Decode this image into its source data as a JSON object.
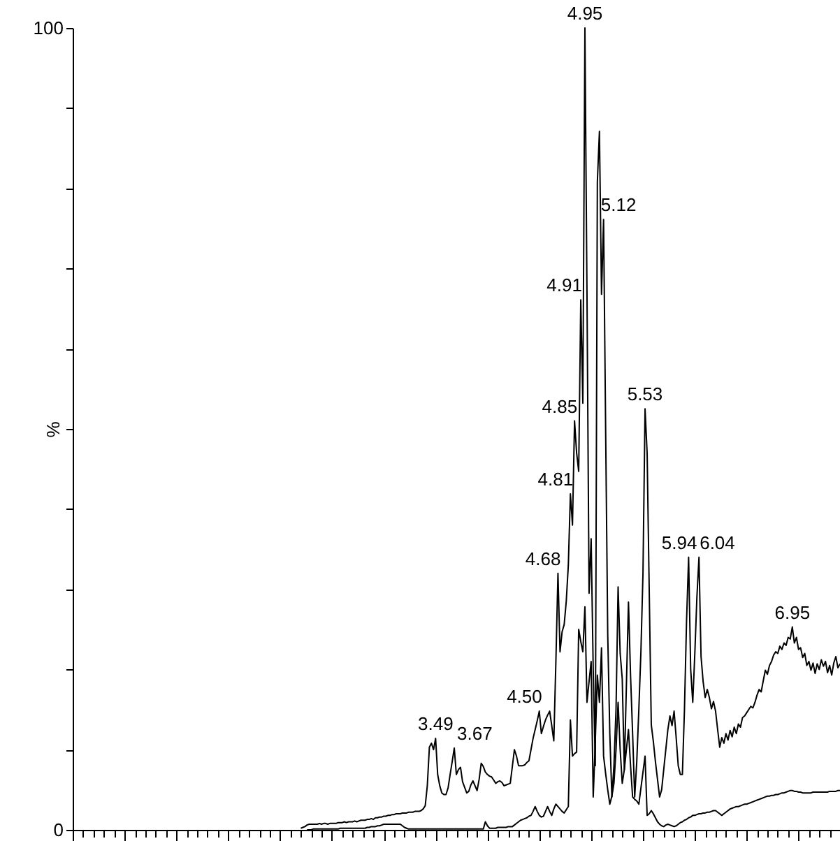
{
  "chart_data": {
    "type": "line",
    "ylabel": "%",
    "line_style": "solid",
    "tick_labels": "y",
    "ylim": [
      0,
      100
    ],
    "yticks": [
      0,
      {
        "value": 10,
        "label": null
      },
      {
        "value": 20,
        "label": null
      },
      {
        "value": 30,
        "label": null
      },
      {
        "value": 40,
        "label": null
      },
      {
        "value": 50,
        "label": null
      },
      {
        "value": 60,
        "label": null
      },
      {
        "value": 70,
        "label": null
      },
      {
        "value": 80,
        "label": null
      },
      {
        "value": 90,
        "label": null
      },
      100
    ],
    "categories": [
      null,
      null,
      null,
      null,
      null,
      null,
      null,
      null,
      null,
      null,
      null,
      null,
      null,
      null,
      null,
      null,
      null,
      null,
      null,
      null,
      null,
      null,
      null,
      null,
      null,
      null,
      null,
      null,
      null,
      null,
      null,
      null,
      null,
      null,
      null,
      null,
      null,
      null,
      null,
      null,
      null,
      null,
      null,
      null,
      null,
      null,
      null,
      null,
      null,
      null,
      null,
      null,
      null,
      null,
      null,
      null,
      null,
      null,
      null,
      null,
      null,
      null,
      null,
      null,
      null,
      null,
      null,
      null,
      null,
      null,
      null,
      null,
      null,
      null,
      null,
      null,
      null,
      null,
      null,
      null,
      null,
      null,
      null,
      null,
      null,
      null,
      null,
      null,
      null,
      null,
      null,
      null,
      null,
      null,
      null,
      null,
      null,
      null,
      null,
      null,
      null,
      null,
      null,
      null,
      null,
      null,
      null,
      null,
      null,
      null,
      null,
      null,
      null,
      null,
      null,
      null,
      null,
      null,
      null,
      null,
      null,
      null,
      null,
      null,
      null,
      null,
      null,
      null,
      null,
      null,
      null,
      null,
      null,
      null,
      null,
      null,
      null,
      null,
      null,
      null,
      null,
      null,
      null,
      null,
      null,
      null,
      null,
      null,
      null,
      null,
      null,
      null,
      null,
      null,
      null,
      null,
      null,
      null,
      null,
      null,
      null,
      null,
      null,
      null,
      null,
      null,
      null,
      null,
      null,
      null,
      null,
      null,
      null,
      null,
      null,
      null,
      null,
      null,
      null,
      null,
      null,
      null,
      null,
      null,
      null,
      null,
      null,
      null,
      null,
      null,
      null,
      null,
      null,
      null,
      null,
      null,
      null,
      null,
      null,
      null,
      null,
      null,
      null,
      null,
      null,
      null,
      null,
      null,
      null,
      null,
      null,
      null,
      null,
      null,
      null,
      null,
      null,
      null,
      null,
      null,
      null,
      null,
      null,
      null,
      null,
      null,
      null,
      null,
      null,
      null,
      null,
      null,
      null,
      null,
      null,
      null,
      null,
      null,
      null,
      null,
      null,
      null,
      null,
      null,
      null,
      null,
      null,
      null,
      null,
      null,
      null,
      null,
      null,
      null,
      null,
      null,
      null,
      null,
      null,
      null,
      null,
      null,
      null,
      null,
      null,
      null,
      null,
      null,
      null,
      null,
      null,
      null,
      null,
      null,
      null,
      null,
      null,
      null,
      null,
      null,
      null,
      null,
      null,
      null,
      null,
      null,
      null,
      null,
      null,
      null,
      null,
      null,
      null,
      null,
      null,
      null,
      null,
      null,
      null,
      null,
      null,
      null,
      null,
      null,
      null,
      null,
      null,
      null,
      null,
      null,
      null,
      null,
      null,
      null,
      null,
      null,
      null,
      null,
      null,
      null,
      null,
      null,
      null,
      null,
      null,
      null,
      null,
      null,
      null,
      null,
      null,
      null,
      null,
      null,
      null,
      null,
      null,
      null,
      null,
      null,
      null,
      null,
      null,
      null,
      null,
      null,
      null,
      null,
      null,
      null,
      null,
      null,
      null,
      null,
      null,
      null,
      null,
      null,
      null,
      null,
      null,
      null,
      null,
      null,
      null,
      null,
      null,
      null,
      null,
      null,
      null
    ],
    "series": [
      {
        "color": "#000000",
        "values": [
          null,
          null,
          null,
          null,
          null,
          null,
          null,
          null,
          null,
          null,
          null,
          null,
          null,
          null,
          null,
          null,
          null,
          null,
          null,
          null,
          null,
          null,
          null,
          null,
          null,
          null,
          null,
          null,
          null,
          null,
          null,
          null,
          null,
          null,
          null,
          null,
          null,
          null,
          null,
          null,
          null,
          null,
          null,
          null,
          null,
          null,
          null,
          null,
          null,
          null,
          null,
          null,
          null,
          null,
          null,
          null,
          null,
          null,
          null,
          null,
          null,
          null,
          null,
          null,
          null,
          null,
          null,
          null,
          null,
          null,
          null,
          null,
          null,
          null,
          null,
          null,
          null,
          null,
          null,
          null,
          null,
          null,
          null,
          null,
          null,
          null,
          null,
          null,
          null,
          null,
          null,
          null,
          null,
          null,
          null,
          null,
          null,
          null,
          null,
          null,
          null,
          null,
          null,
          null,
          null,
          null,
          null,
          null,
          null,
          null,
          0.2,
          0.3,
          0.4,
          0.6,
          0.7,
          0.7,
          0.7,
          0.7,
          0.7,
          0.8,
          0.7,
          0.8,
          0.8,
          0.7,
          0.8,
          0.8,
          0.8,
          0.8,
          0.9,
          0.9,
          0.9,
          1.0,
          0.9,
          1.0,
          1.0,
          1.0,
          1.1,
          1.0,
          1.1,
          1.2,
          1.2,
          1.2,
          1.3,
          1.3,
          1.4,
          1.3,
          1.5,
          1.5,
          1.6,
          1.6,
          1.7,
          1.7,
          1.8,
          1.8,
          1.9,
          1.9,
          2.0,
          2.0,
          2.0,
          2.1,
          2.1,
          2.1,
          2.2,
          2.2,
          2.2,
          2.3,
          2.3,
          2.3,
          2.4,
          2.6,
          3.0,
          5.5,
          10.3,
          10.8,
          10.0,
          11.4,
          6.9,
          5.5,
          4.6,
          4.4,
          4.4,
          5.2,
          6.9,
          8.5,
          10.2,
          6.9,
          7.5,
          7.8,
          6.0,
          5.3,
          4.6,
          4.8,
          5.6,
          6.1,
          5.5,
          4.9,
          6.3,
          8.3,
          7.9,
          7.2,
          6.9,
          6.7,
          6.6,
          6.2,
          5.8,
          6.0,
          6.1,
          5.9,
          5.5,
          5.6,
          5.7,
          5.8,
          7.9,
          10.0,
          9.2,
          8.0,
          8.0,
          8.0,
          8.1,
          8.4,
          8.6,
          10.0,
          11.4,
          12.5,
          13.6,
          14.8,
          12.0,
          12.9,
          13.7,
          14.3,
          14.8,
          13.0,
          11.1,
          21.0,
          32.0,
          22.2,
          24.7,
          25.6,
          28.5,
          33.0,
          41.9,
          38.0,
          51.0,
          47.0,
          44.7,
          66.1,
          53.2,
          100,
          66.8,
          29.5,
          36.3,
          20.0,
          8.0,
          80.8,
          87.1,
          66.8,
          76.1,
          49.8,
          24.4,
          12.0,
          4.1,
          8.0,
          15.0,
          30.3,
          22.0,
          18.8,
          7.5,
          18.0,
          28.4,
          19.3,
          12.0,
          4.1,
          8.5,
          15.0,
          22.2,
          32.0,
          52.5,
          47.0,
          30.0,
          13.1,
          11.0,
          8.5,
          6.3,
          4.1,
          5.0,
          7.5,
          10.0,
          12.5,
          14.2,
          13.0,
          14.8,
          11.5,
          8.0,
          6.9,
          6.9,
          15.0,
          26.0,
          34.0,
          20.0,
          15.9,
          22.0,
          29.0,
          34.0,
          21.6,
          18.5,
          16.5,
          17.5,
          16.5,
          15.1,
          16.0,
          14.8,
          12.5,
          10.3,
          11.5,
          10.8,
          12.0,
          11.2,
          12.4,
          11.6,
          12.8,
          12.0,
          13.2,
          12.8,
          14.0,
          14.2,
          14.6,
          15.0,
          15.4,
          15.2,
          15.9,
          16.8,
          17.5,
          17.2,
          18.6,
          19.9,
          19.4,
          20.5,
          21.0,
          21.8,
          22.2,
          22.0,
          22.9,
          22.5,
          23.3,
          23.0,
          24.0,
          23.8,
          25.3,
          23.3,
          24.0,
          22.5,
          22.7,
          21.5,
          22.0,
          20.5,
          21.0,
          19.9,
          20.8,
          19.5,
          20.7,
          20.0,
          21.2,
          20.4,
          21.0,
          19.6,
          20.5,
          19.3,
          20.8,
          21.6,
          20.2,
          20.7
        ]
      },
      {
        "color": "#000000",
        "values": [
          null,
          null,
          null,
          null,
          null,
          null,
          null,
          null,
          null,
          null,
          null,
          null,
          null,
          null,
          null,
          null,
          null,
          null,
          null,
          null,
          null,
          null,
          null,
          null,
          null,
          null,
          null,
          null,
          null,
          null,
          null,
          null,
          null,
          null,
          null,
          null,
          null,
          null,
          null,
          null,
          null,
          null,
          null,
          null,
          null,
          null,
          null,
          null,
          null,
          null,
          null,
          null,
          null,
          null,
          null,
          null,
          null,
          null,
          null,
          null,
          null,
          null,
          null,
          null,
          null,
          null,
          null,
          null,
          null,
          null,
          null,
          null,
          null,
          null,
          null,
          null,
          null,
          null,
          null,
          null,
          null,
          null,
          null,
          null,
          null,
          null,
          null,
          null,
          null,
          null,
          null,
          null,
          null,
          null,
          null,
          null,
          null,
          null,
          null,
          null,
          null,
          null,
          null,
          null,
          null,
          null,
          null,
          null,
          null,
          null,
          null,
          null,
          null,
          0.0,
          0.0,
          0.0,
          0.1,
          0.1,
          0.1,
          0.1,
          0.1,
          0.1,
          0.1,
          0.1,
          0.1,
          0.1,
          0.1,
          0.1,
          0.1,
          0.2,
          0.2,
          0.2,
          0.2,
          0.2,
          0.2,
          0.2,
          0.2,
          0.2,
          0.2,
          0.2,
          0.2,
          0.2,
          0.3,
          0.3,
          0.4,
          0.4,
          0.4,
          0.5,
          0.5,
          0.6,
          0.7,
          0.7,
          0.7,
          0.7,
          0.7,
          0.7,
          0.7,
          0.7,
          0.7,
          0.5,
          0.3,
          0.2,
          0.1,
          0.1,
          0.1,
          0.1,
          0.1,
          0.1,
          0.1,
          0.1,
          0.1,
          0.1,
          0.1,
          0.1,
          0.1,
          0.1,
          0.1,
          0.1,
          0.1,
          0.1,
          0.1,
          0.1,
          0.1,
          0.1,
          0.1,
          0.1,
          0.1,
          0.1,
          0.1,
          0.1,
          0.1,
          0.1,
          0.1,
          0.1,
          0.1,
          0.1,
          0.1,
          0.1,
          0.1,
          1.0,
          0.5,
          0.2,
          0.2,
          0.2,
          0.2,
          0.3,
          0.3,
          0.3,
          0.3,
          0.3,
          0.4,
          0.4,
          0.4,
          0.6,
          0.8,
          1.0,
          1.2,
          1.3,
          1.4,
          1.5,
          1.7,
          1.8,
          2.3,
          2.9,
          2.3,
          1.8,
          1.6,
          1.7,
          2.3,
          2.9,
          2.3,
          1.8,
          2.6,
          3.2,
          2.9,
          2.6,
          2.3,
          2.1,
          2.5,
          2.9,
          13.7,
          9.2,
          9.5,
          9.7,
          25.0,
          23.5,
          22.2,
          27.8,
          15.9,
          18.5,
          21.0,
          4.1,
          11.0,
          19.3,
          15.9,
          22.7,
          9.2,
          7.0,
          5.0,
          3.2,
          4.2,
          5.8,
          10.0,
          15.9,
          10.0,
          5.8,
          7.5,
          10.0,
          12.5,
          8.0,
          4.1,
          3.8,
          3.6,
          3.2,
          5.2,
          7.2,
          9.2,
          1.8,
          2.0,
          2.4,
          2.0,
          1.5,
          1.0,
          0.7,
          0.5,
          0.4,
          0.6,
          0.7,
          0.6,
          0.5,
          0.4,
          0.5,
          0.7,
          0.9,
          1.0,
          1.2,
          1.3,
          1.5,
          1.6,
          1.8,
          1.8,
          1.9,
          2.0,
          2.0,
          2.1,
          2.1,
          2.2,
          2.2,
          2.3,
          2.4,
          2.4,
          2.2,
          2.0,
          1.8,
          2.0,
          2.2,
          2.4,
          2.6,
          2.7,
          2.8,
          2.9,
          2.9,
          3.0,
          3.1,
          3.2,
          3.2,
          3.3,
          3.4,
          3.5,
          3.6,
          3.7,
          3.8,
          3.9,
          4.0,
          4.1,
          4.2,
          4.2,
          4.3,
          4.3,
          4.4,
          4.4,
          4.5,
          4.6,
          4.6,
          4.7,
          4.8,
          4.9,
          4.9,
          4.8,
          4.8,
          4.7,
          4.7,
          4.6,
          4.6,
          4.6,
          4.6,
          4.6,
          4.7,
          4.7,
          4.7,
          4.7,
          4.7,
          4.7,
          4.7,
          4.7,
          4.8,
          4.8,
          4.8,
          4.8,
          4.9,
          4.9
        ]
      }
    ],
    "annotations": [
      "3.49",
      "3.67",
      "4.50",
      "4.68",
      "4.81",
      "4.85",
      "4.91",
      "4.95",
      "5.12",
      "5.53",
      "5.94",
      "6.04",
      "6.95"
    ]
  }
}
